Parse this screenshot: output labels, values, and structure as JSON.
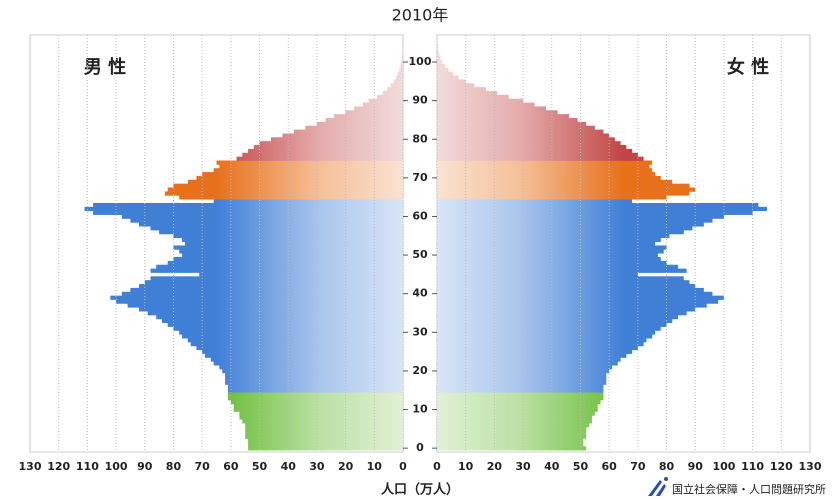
{
  "chart_data": {
    "type": "pyramid",
    "title": "2010年",
    "x_label": "人口（万人）",
    "source": "国立社会保障・人口問題研究所",
    "xlim": [
      0,
      130
    ],
    "xticks": [
      0,
      10,
      20,
      30,
      40,
      50,
      60,
      70,
      80,
      90,
      100,
      110,
      120,
      130
    ],
    "ylim": [
      -1,
      107
    ],
    "yticks": [
      0,
      10,
      20,
      30,
      40,
      50,
      60,
      70,
      80,
      90,
      100
    ],
    "grid": true,
    "color_bands": [
      {
        "from": 0,
        "to": 14,
        "color": "#66bb33"
      },
      {
        "from": 15,
        "to": 64,
        "color": "#3f7fd6"
      },
      {
        "from": 65,
        "to": 74,
        "color": "#e8701a"
      },
      {
        "from": 75,
        "to": 105,
        "color": "#c24545"
      }
    ],
    "series": [
      {
        "name": "男 性",
        "side": "left",
        "values": [
          54,
          54,
          54,
          55,
          55,
          55,
          55,
          56,
          57,
          57,
          59,
          59,
          60,
          61,
          61,
          61,
          61,
          62,
          62,
          62,
          63,
          64,
          66,
          67,
          69,
          70,
          72,
          74,
          75,
          77,
          78,
          80,
          82,
          84,
          86,
          89,
          92,
          96,
          100,
          102,
          98,
          95,
          92,
          90,
          88,
          71,
          88,
          86,
          82,
          80,
          77,
          78,
          80,
          76,
          77,
          80,
          85,
          88,
          92,
          95,
          98,
          108,
          111,
          108,
          66,
          78,
          83,
          82,
          80,
          75,
          72,
          70,
          66,
          64,
          65,
          58,
          56,
          54,
          52,
          50,
          46,
          42,
          38,
          34,
          30,
          27,
          24,
          20,
          17,
          14,
          12,
          9,
          7,
          5.5,
          4.2,
          3.2,
          2.4,
          1.8,
          1.3,
          0.9,
          0.6,
          0.4,
          0.3,
          0.2,
          0.1,
          0.1
        ]
      },
      {
        "name": "女 性",
        "side": "right",
        "values": [
          52,
          51,
          51,
          52,
          52,
          52,
          53,
          54,
          54,
          55,
          56,
          56,
          57,
          58,
          58,
          58,
          58,
          59,
          59,
          59,
          60,
          61,
          63,
          64,
          66,
          68,
          70,
          72,
          73,
          75,
          76,
          78,
          80,
          82,
          84,
          87,
          90,
          94,
          98,
          100,
          96,
          93,
          90,
          88,
          86,
          70,
          87,
          84,
          80,
          78,
          77,
          79,
          80,
          76,
          78,
          81,
          86,
          89,
          93,
          96,
          100,
          110,
          115,
          112,
          68,
          80,
          88,
          90,
          88,
          82,
          78,
          76,
          75,
          74,
          75,
          72,
          70,
          68,
          66,
          64,
          62,
          60,
          58,
          55,
          52,
          49,
          46,
          42,
          38,
          34,
          30,
          25,
          21,
          17,
          13,
          10,
          7.5,
          5.5,
          4,
          2.8,
          1.8,
          1.2,
          0.8,
          0.5,
          0.3,
          0.2
        ]
      }
    ]
  }
}
